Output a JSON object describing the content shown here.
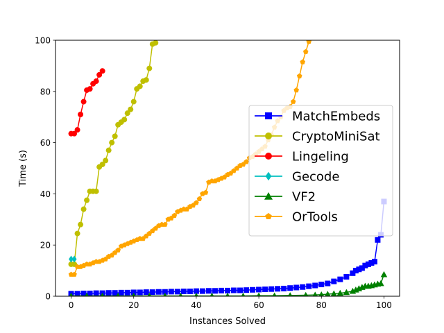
{
  "chart_data": {
    "type": "line",
    "xlabel": "Instances Solved",
    "ylabel": "Time (s)",
    "xlim": [
      -5,
      105
    ],
    "ylim": [
      0,
      100
    ],
    "xticks": [
      0,
      20,
      40,
      60,
      80,
      100
    ],
    "yticks": [
      0,
      20,
      40,
      60,
      80,
      100
    ],
    "grid": false,
    "legend_position": "right",
    "series": [
      {
        "name": "MatchEmbeds",
        "color": "#0000ff",
        "marker": "square",
        "x": [
          0,
          2,
          4,
          6,
          8,
          10,
          12,
          14,
          16,
          18,
          20,
          22,
          24,
          26,
          28,
          30,
          32,
          34,
          36,
          38,
          40,
          42,
          44,
          46,
          48,
          50,
          52,
          54,
          56,
          58,
          60,
          62,
          64,
          66,
          68,
          70,
          72,
          74,
          76,
          78,
          80,
          82,
          84,
          86,
          88,
          90,
          91,
          92,
          93,
          94,
          95,
          96,
          97,
          98,
          99,
          100
        ],
        "y": [
          1.0,
          1.0,
          1.1,
          1.1,
          1.2,
          1.2,
          1.3,
          1.3,
          1.4,
          1.4,
          1.5,
          1.5,
          1.6,
          1.6,
          1.7,
          1.7,
          1.8,
          1.8,
          1.9,
          1.9,
          2.0,
          2.0,
          2.1,
          2.1,
          2.2,
          2.2,
          2.3,
          2.3,
          2.4,
          2.5,
          2.6,
          2.7,
          2.8,
          2.9,
          3.0,
          3.2,
          3.4,
          3.6,
          3.9,
          4.2,
          4.6,
          5.0,
          5.8,
          6.6,
          7.6,
          9.0,
          10.0,
          10.5,
          11.0,
          12.0,
          12.5,
          13.0,
          13.5,
          22.0,
          24.0,
          37.0
        ]
      },
      {
        "name": "CryptoMiniSat",
        "color": "#bfbf00",
        "marker": "circle",
        "x": [
          0,
          1,
          2,
          3,
          4,
          5,
          6,
          7,
          8,
          9,
          10,
          11,
          12,
          13,
          14,
          15,
          16,
          17,
          18,
          19,
          20,
          21,
          22,
          23,
          24,
          25,
          26,
          27
        ],
        "y": [
          12.5,
          12.5,
          24.5,
          28.0,
          34.0,
          37.5,
          41.0,
          41.0,
          41.0,
          50.5,
          51.5,
          53.0,
          57.0,
          60.0,
          62.5,
          67.0,
          68.0,
          69.0,
          71.5,
          73.0,
          76.0,
          81.0,
          82.0,
          84.0,
          84.5,
          89.0,
          98.5,
          99.0
        ]
      },
      {
        "name": "Lingeling",
        "color": "#ff0000",
        "marker": "circle",
        "x": [
          0,
          1,
          2,
          3,
          4,
          5,
          6,
          7,
          8,
          9,
          10
        ],
        "y": [
          63.5,
          63.5,
          65.0,
          71.0,
          76.0,
          80.5,
          81.0,
          83.0,
          84.0,
          86.5,
          88.0
        ]
      },
      {
        "name": "Gecode",
        "color": "#00bfbf",
        "marker": "diamond",
        "x": [
          0,
          1
        ],
        "y": [
          14.5,
          14.5
        ]
      },
      {
        "name": "VF2",
        "color": "#008000",
        "marker": "triangle",
        "x": [
          0,
          5,
          10,
          15,
          20,
          25,
          30,
          35,
          40,
          45,
          50,
          55,
          60,
          65,
          70,
          75,
          78,
          80,
          82,
          84,
          86,
          88,
          90,
          91,
          92,
          93,
          94,
          95,
          96,
          97,
          98,
          99,
          100
        ],
        "y": [
          0.1,
          0.1,
          0.1,
          0.1,
          0.1,
          0.1,
          0.1,
          0.1,
          0.1,
          0.1,
          0.1,
          0.1,
          0.2,
          0.2,
          0.3,
          0.4,
          0.5,
          0.6,
          0.8,
          1.0,
          1.2,
          1.5,
          2.0,
          2.5,
          3.0,
          3.5,
          4.0,
          4.0,
          4.2,
          4.5,
          4.8,
          5.0,
          8.5
        ]
      },
      {
        "name": "OrTools",
        "color": "#ffa500",
        "marker": "pentagon",
        "x": [
          0,
          1,
          2,
          3,
          4,
          5,
          6,
          7,
          8,
          9,
          10,
          11,
          12,
          13,
          14,
          15,
          16,
          17,
          18,
          19,
          20,
          21,
          22,
          23,
          24,
          25,
          26,
          27,
          28,
          29,
          30,
          31,
          32,
          33,
          34,
          35,
          36,
          37,
          38,
          39,
          40,
          41,
          42,
          43,
          44,
          45,
          46,
          47,
          48,
          49,
          50,
          51,
          52,
          53,
          54,
          55,
          56,
          57,
          58,
          59,
          60,
          61,
          62,
          63,
          64,
          65,
          66,
          67,
          68,
          69,
          70,
          71,
          72,
          73,
          74,
          75,
          76
        ],
        "y": [
          8.5,
          8.5,
          11.5,
          11.5,
          12.0,
          12.5,
          12.5,
          13.0,
          13.5,
          13.5,
          14.0,
          14.5,
          15.5,
          16.0,
          17.0,
          18.0,
          19.5,
          20.0,
          20.5,
          21.0,
          21.5,
          22.0,
          22.5,
          22.5,
          23.5,
          24.5,
          25.5,
          26.5,
          27.5,
          28.0,
          28.0,
          30.0,
          30.5,
          31.5,
          33.0,
          33.5,
          34.0,
          34.0,
          35.0,
          35.5,
          36.5,
          38.0,
          40.0,
          40.5,
          44.5,
          45.0,
          45.0,
          45.5,
          46.0,
          46.5,
          47.5,
          48.0,
          49.0,
          50.0,
          51.0,
          51.5,
          52.5,
          54.0,
          54.5,
          55.5,
          56.5,
          57.5,
          58.5,
          61.0,
          63.0,
          66.0,
          68.5,
          70.0,
          72.5,
          73.5,
          74.0,
          76.0,
          80.5,
          86.0,
          91.5,
          95.5,
          99.5
        ]
      }
    ]
  }
}
